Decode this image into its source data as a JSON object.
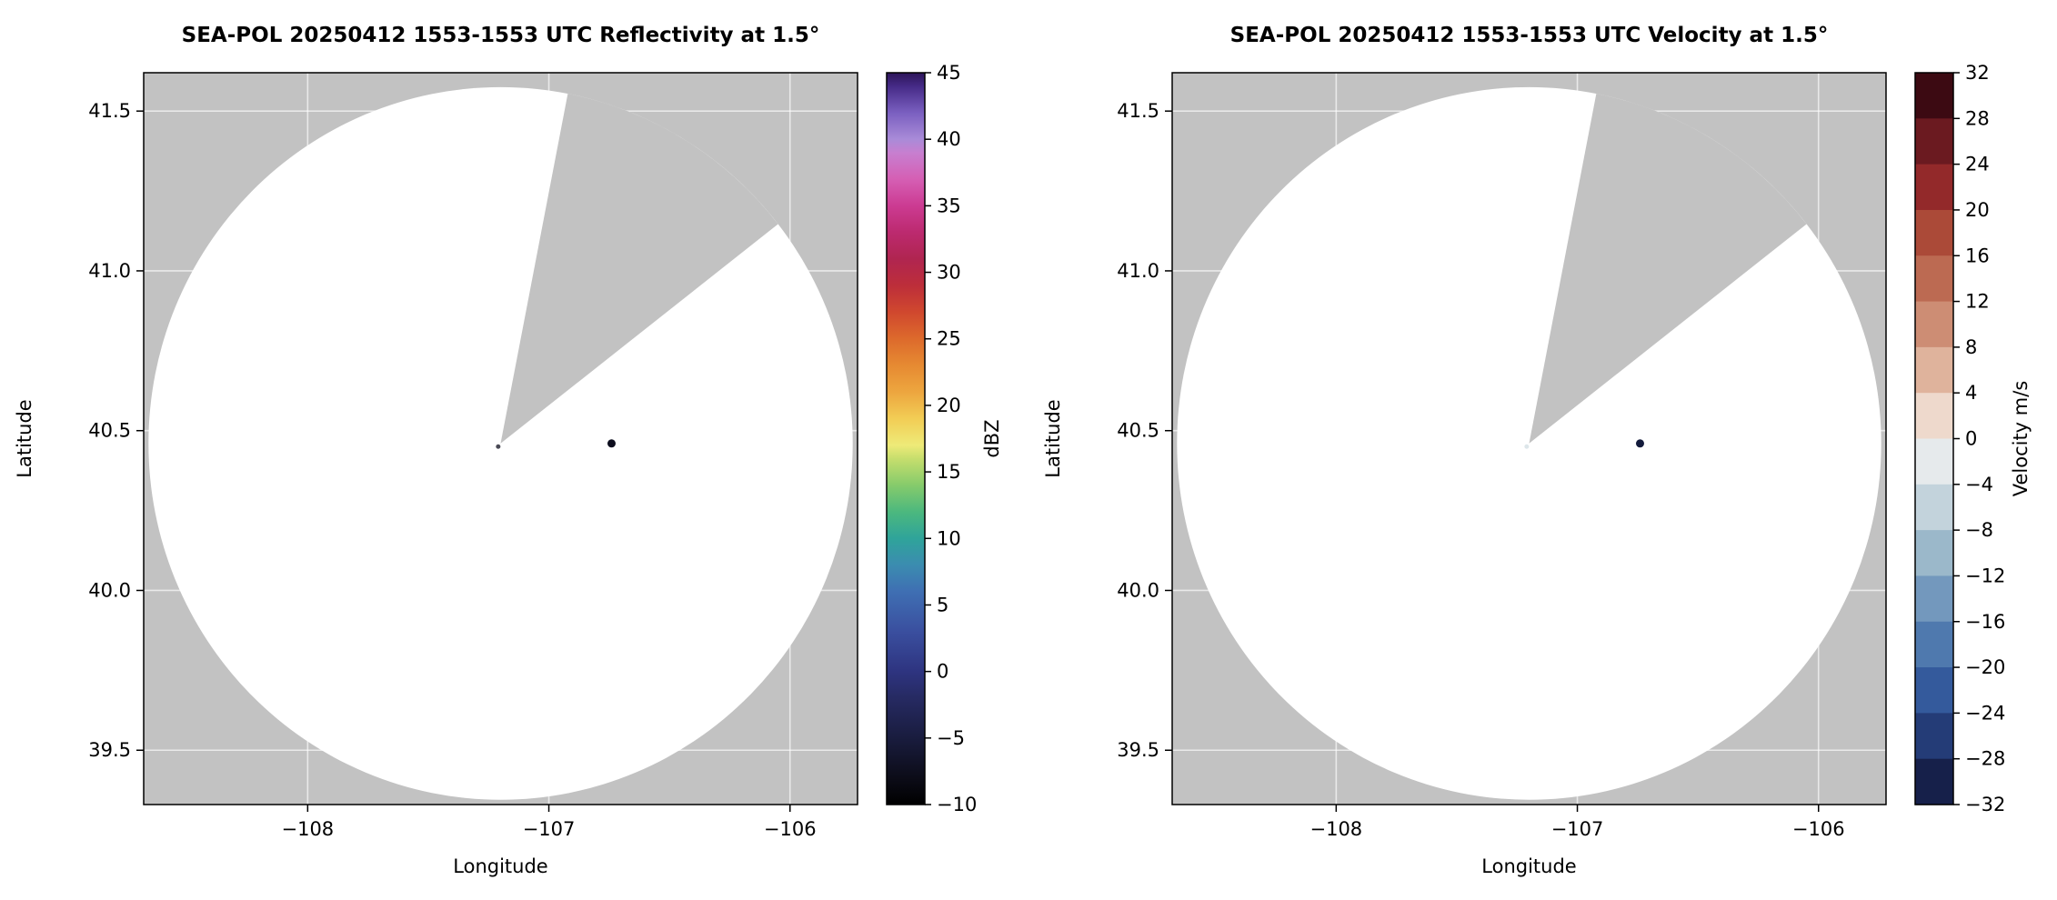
{
  "figure": {
    "background": "#ffffff"
  },
  "chart_data": [
    {
      "type": "radar_ppi_map",
      "panel": "reflectivity",
      "title": "SEA-POL 20250412 1553-1553 UTC Reflectivity at 1.5°",
      "xlabel": "Longitude",
      "ylabel": "Latitude",
      "xlim": [
        -108.68,
        -105.72
      ],
      "ylim": [
        39.33,
        41.62
      ],
      "xticks": [
        {
          "v": -108,
          "label": "−108"
        },
        {
          "v": -107,
          "label": "−107"
        },
        {
          "v": -106,
          "label": "−106"
        }
      ],
      "yticks": [
        {
          "v": 39.5,
          "label": "39.5"
        },
        {
          "v": 40,
          "label": "40.0"
        },
        {
          "v": 40.5,
          "label": "40.5"
        },
        {
          "v": 41,
          "label": "41.0"
        },
        {
          "v": 41.5,
          "label": "41.5"
        }
      ],
      "grid": true,
      "colors": {
        "outside": "#c2c2c2",
        "scanned": "#ffffff",
        "grid": "#ffffff"
      },
      "radar_center_lonlat": [
        -107.2,
        40.46
      ],
      "scan_radius_lon_deg": 1.46,
      "scan_radius_lat_deg": 1.115,
      "missing_sector_az_deg": [
        11,
        52
      ],
      "echoes": [
        {
          "lon": -107.21,
          "lat": 40.45,
          "approx_value": 5,
          "color": "#4a4a55",
          "r": 2.5
        },
        {
          "lon": -106.74,
          "lat": 40.46,
          "approx_value": -6,
          "color": "#0d0e1e",
          "r": 4.5
        }
      ],
      "colorbar": {
        "label": "dBZ",
        "style": "continuous",
        "min": -10,
        "max": 45,
        "ticks": [
          {
            "v": 45,
            "label": "45"
          },
          {
            "v": 40,
            "label": "40"
          },
          {
            "v": 35,
            "label": "35"
          },
          {
            "v": 30,
            "label": "30"
          },
          {
            "v": 25,
            "label": "25"
          },
          {
            "v": 20,
            "label": "20"
          },
          {
            "v": 15,
            "label": "15"
          },
          {
            "v": 10,
            "label": "10"
          },
          {
            "v": 5,
            "label": "5"
          },
          {
            "v": 0,
            "label": "0"
          },
          {
            "v": -5,
            "label": "−5"
          },
          {
            "v": -10,
            "label": "−10"
          }
        ],
        "gradient_stops": [
          {
            "v": -10,
            "c": "#000000"
          },
          {
            "v": -8,
            "c": "#0c0c18"
          },
          {
            "v": -5,
            "c": "#191c3e"
          },
          {
            "v": -2,
            "c": "#262a62"
          },
          {
            "v": 0,
            "c": "#2e3480"
          },
          {
            "v": 3,
            "c": "#3a4f9f"
          },
          {
            "v": 6,
            "c": "#3f6fb3"
          },
          {
            "v": 8,
            "c": "#3b8cb0"
          },
          {
            "v": 10,
            "c": "#2fa49a"
          },
          {
            "v": 12,
            "c": "#4cb87e"
          },
          {
            "v": 14,
            "c": "#86cb6b"
          },
          {
            "v": 16,
            "c": "#c6de6d"
          },
          {
            "v": 17,
            "c": "#eeea78"
          },
          {
            "v": 19,
            "c": "#f2cd55"
          },
          {
            "v": 21,
            "c": "#eda63f"
          },
          {
            "v": 23,
            "c": "#e68a32"
          },
          {
            "v": 25,
            "c": "#dd6a2c"
          },
          {
            "v": 27,
            "c": "#d0482e"
          },
          {
            "v": 29,
            "c": "#bd2e3a"
          },
          {
            "v": 31,
            "c": "#b02550"
          },
          {
            "v": 33,
            "c": "#bc2a6f"
          },
          {
            "v": 35,
            "c": "#cc3b92"
          },
          {
            "v": 37,
            "c": "#d55fb4"
          },
          {
            "v": 39,
            "c": "#c77fd0"
          },
          {
            "v": 40,
            "c": "#a98bd8"
          },
          {
            "v": 42,
            "c": "#7a5fc0"
          },
          {
            "v": 44,
            "c": "#452a86"
          },
          {
            "v": 45,
            "c": "#2c1458"
          }
        ]
      }
    },
    {
      "type": "radar_ppi_map",
      "panel": "velocity",
      "title": "SEA-POL 20250412 1553-1553 UTC Velocity at 1.5°",
      "xlabel": "Longitude",
      "ylabel": "Latitude",
      "xlim": [
        -108.68,
        -105.72
      ],
      "ylim": [
        39.33,
        41.62
      ],
      "xticks": [
        {
          "v": -108,
          "label": "−108"
        },
        {
          "v": -107,
          "label": "−107"
        },
        {
          "v": -106,
          "label": "−106"
        }
      ],
      "yticks": [
        {
          "v": 39.5,
          "label": "39.5"
        },
        {
          "v": 40,
          "label": "40.0"
        },
        {
          "v": 40.5,
          "label": "40.5"
        },
        {
          "v": 41,
          "label": "41.0"
        },
        {
          "v": 41.5,
          "label": "41.5"
        }
      ],
      "grid": true,
      "colors": {
        "outside": "#c2c2c2",
        "scanned": "#ffffff",
        "grid": "#ffffff"
      },
      "radar_center_lonlat": [
        -107.2,
        40.46
      ],
      "scan_radius_lon_deg": 1.46,
      "scan_radius_lat_deg": 1.115,
      "missing_sector_az_deg": [
        11,
        52
      ],
      "echoes": [
        {
          "lon": -107.21,
          "lat": 40.45,
          "approx_value": 0,
          "color": "#dde6ea",
          "r": 2.5
        },
        {
          "lon": -106.74,
          "lat": 40.46,
          "approx_value": -30,
          "color": "#131b3c",
          "r": 4.5
        }
      ],
      "colorbar": {
        "label": "Velocity m/s",
        "style": "discrete",
        "min": -32,
        "max": 32,
        "ticks": [
          {
            "v": 32,
            "label": "32"
          },
          {
            "v": 28,
            "label": "28"
          },
          {
            "v": 24,
            "label": "24"
          },
          {
            "v": 20,
            "label": "20"
          },
          {
            "v": 16,
            "label": "16"
          },
          {
            "v": 12,
            "label": "12"
          },
          {
            "v": 8,
            "label": "8"
          },
          {
            "v": 4,
            "label": "4"
          },
          {
            "v": 0,
            "label": "0"
          },
          {
            "v": -4,
            "label": "−4"
          },
          {
            "v": -8,
            "label": "−8"
          },
          {
            "v": -12,
            "label": "−12"
          },
          {
            "v": -16,
            "label": "−16"
          },
          {
            "v": -20,
            "label": "−20"
          },
          {
            "v": -24,
            "label": "−24"
          },
          {
            "v": -28,
            "label": "−28"
          },
          {
            "v": -32,
            "label": "−32"
          }
        ],
        "band_edges": [
          32,
          28,
          24,
          20,
          16,
          12,
          8,
          4,
          0,
          -4,
          -8,
          -12,
          -16,
          -20,
          -24,
          -28,
          -32
        ],
        "band_colors_top_to_bottom": [
          "#3c0a12",
          "#6b1a20",
          "#93292a",
          "#ab4a38",
          "#bc6a52",
          "#cd8d74",
          "#dfb39c",
          "#eed9cc",
          "#e6eaec",
          "#c3d3dc",
          "#9bb8ca",
          "#7398bd",
          "#4f79ae",
          "#345a9c",
          "#243c77",
          "#16204a"
        ]
      }
    }
  ]
}
